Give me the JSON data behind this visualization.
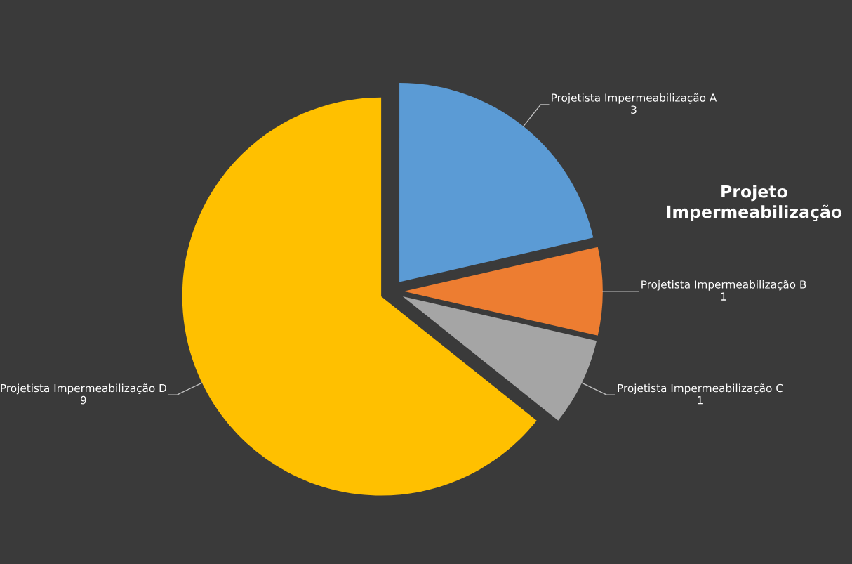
{
  "chart_data": {
    "type": "pie",
    "title": "Projeto\nImpermeabilização",
    "categories": [
      "Projetista Impermeabilização A",
      "Projetista Impermeabilização B",
      "Projetista Impermeabilização C",
      "Projetista Impermeabilização D"
    ],
    "values": [
      3,
      1,
      1,
      9
    ],
    "colors": [
      "#5b9bd5",
      "#ed7d31",
      "#a5a5a5",
      "#ffc000"
    ],
    "data_labels": true,
    "legend": false
  }
}
